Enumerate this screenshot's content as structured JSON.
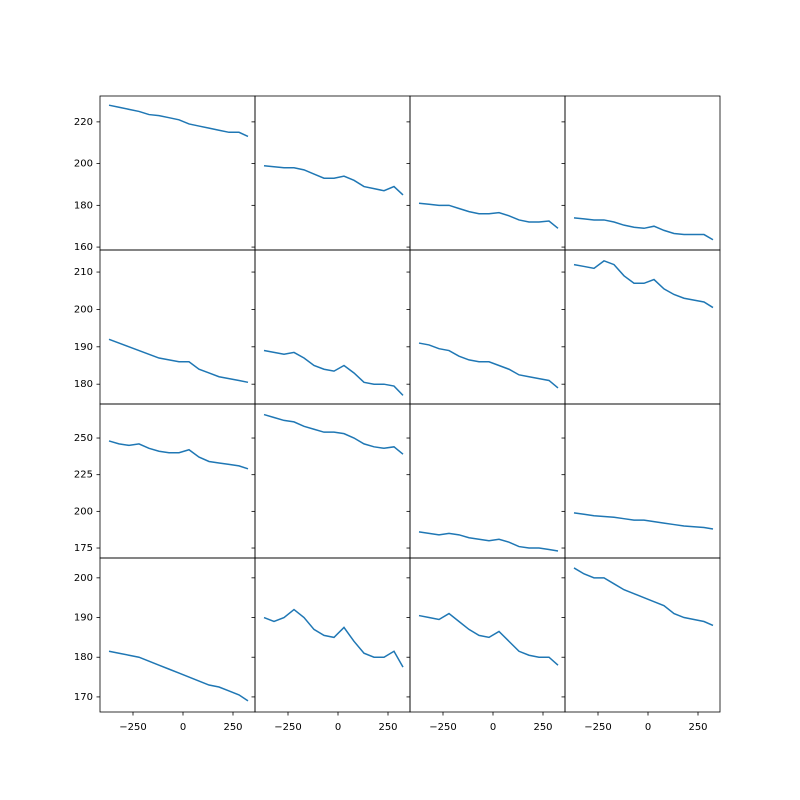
{
  "chart_data": [
    {
      "type": "line",
      "x": [
        -370,
        -320,
        -270,
        -220,
        -170,
        -120,
        -70,
        -20,
        30,
        80,
        130,
        180,
        230,
        280,
        325
      ],
      "xlim": [
        -415,
        360
      ],
      "ylim": [
        158.6,
        232.4
      ],
      "yticks": [
        160,
        180,
        200,
        220
      ],
      "color": "#1f77b4",
      "values": [
        228,
        227,
        226,
        225,
        223.5,
        223,
        222,
        221,
        219,
        218,
        217,
        216,
        215,
        215,
        213
      ]
    },
    {
      "type": "line",
      "x": [
        -370,
        -320,
        -270,
        -220,
        -170,
        -120,
        -70,
        -20,
        30,
        80,
        130,
        180,
        230,
        280,
        325
      ],
      "xlim": [
        -415,
        360
      ],
      "ylim": [
        158.6,
        232.4
      ],
      "yticks": [
        160,
        180,
        200,
        220
      ],
      "color": "#1f77b4",
      "values": [
        199,
        198.5,
        198,
        198,
        197,
        195,
        193,
        193,
        194,
        192,
        189,
        188,
        187,
        189,
        185
      ]
    },
    {
      "type": "line",
      "x": [
        -370,
        -320,
        -270,
        -220,
        -170,
        -120,
        -70,
        -20,
        30,
        80,
        130,
        180,
        230,
        280,
        325
      ],
      "xlim": [
        -415,
        360
      ],
      "ylim": [
        158.6,
        232.4
      ],
      "yticks": [
        160,
        180,
        200,
        220
      ],
      "color": "#1f77b4",
      "values": [
        181,
        180.5,
        180,
        180,
        178.5,
        177,
        176,
        176,
        176.5,
        175,
        173,
        172,
        172,
        172.5,
        169
      ]
    },
    {
      "type": "line",
      "x": [
        -370,
        -320,
        -270,
        -220,
        -170,
        -120,
        -70,
        -20,
        30,
        80,
        130,
        180,
        230,
        280,
        325
      ],
      "xlim": [
        -415,
        360
      ],
      "ylim": [
        158.6,
        232.4
      ],
      "yticks": [
        160,
        180,
        200,
        220
      ],
      "color": "#1f77b4",
      "values": [
        174,
        173.5,
        173,
        173,
        172,
        170.5,
        169.5,
        169,
        170,
        168,
        166.5,
        166,
        166,
        166,
        163.5
      ]
    },
    {
      "type": "line",
      "x": [
        -370,
        -320,
        -270,
        -220,
        -170,
        -120,
        -70,
        -20,
        30,
        80,
        130,
        180,
        230,
        280,
        325
      ],
      "xlim": [
        -415,
        360
      ],
      "ylim": [
        174.7,
        215.9
      ],
      "yticks": [
        180,
        190,
        200,
        210
      ],
      "color": "#1f77b4",
      "values": [
        192,
        191,
        190,
        189,
        188,
        187,
        186.5,
        186,
        186,
        184,
        183,
        182,
        181.5,
        181,
        180.5
      ]
    },
    {
      "type": "line",
      "x": [
        -370,
        -320,
        -270,
        -220,
        -170,
        -120,
        -70,
        -20,
        30,
        80,
        130,
        180,
        230,
        280,
        325
      ],
      "xlim": [
        -415,
        360
      ],
      "ylim": [
        174.7,
        215.9
      ],
      "yticks": [
        180,
        190,
        200,
        210
      ],
      "color": "#1f77b4",
      "values": [
        189,
        188.5,
        188,
        188.5,
        187,
        185,
        184,
        183.5,
        185,
        183,
        180.5,
        180,
        180,
        179.5,
        177
      ]
    },
    {
      "type": "line",
      "x": [
        -370,
        -320,
        -270,
        -220,
        -170,
        -120,
        -70,
        -20,
        30,
        80,
        130,
        180,
        230,
        280,
        325
      ],
      "xlim": [
        -415,
        360
      ],
      "ylim": [
        174.7,
        215.9
      ],
      "yticks": [
        180,
        190,
        200,
        210
      ],
      "color": "#1f77b4",
      "values": [
        191,
        190.5,
        189.5,
        189,
        187.5,
        186.5,
        186,
        186,
        185,
        184,
        182.5,
        182,
        181.5,
        181,
        179
      ]
    },
    {
      "type": "line",
      "x": [
        -370,
        -320,
        -270,
        -220,
        -170,
        -120,
        -70,
        -20,
        30,
        80,
        130,
        180,
        230,
        280,
        325
      ],
      "xlim": [
        -415,
        360
      ],
      "ylim": [
        174.7,
        215.9
      ],
      "yticks": [
        180,
        190,
        200,
        210
      ],
      "color": "#1f77b4",
      "values": [
        212,
        211.5,
        211,
        213,
        212,
        209,
        207,
        207,
        208,
        205.5,
        204,
        203,
        202.5,
        202,
        200.5
      ]
    },
    {
      "type": "line",
      "x": [
        -370,
        -320,
        -270,
        -220,
        -170,
        -120,
        -70,
        -20,
        30,
        80,
        130,
        180,
        230,
        280,
        325
      ],
      "xlim": [
        -415,
        360
      ],
      "ylim": [
        168.2,
        273.2
      ],
      "yticks": [
        175,
        200,
        225,
        250
      ],
      "color": "#1f77b4",
      "values": [
        248,
        246,
        245,
        246,
        243,
        241,
        240,
        240,
        242,
        237,
        234,
        233,
        232,
        231,
        229
      ]
    },
    {
      "type": "line",
      "x": [
        -370,
        -320,
        -270,
        -220,
        -170,
        -120,
        -70,
        -20,
        30,
        80,
        130,
        180,
        230,
        280,
        325
      ],
      "xlim": [
        -415,
        360
      ],
      "ylim": [
        168.2,
        273.2
      ],
      "yticks": [
        175,
        200,
        225,
        250
      ],
      "color": "#1f77b4",
      "values": [
        266,
        264,
        262,
        261,
        258,
        256,
        254,
        254,
        253,
        250,
        246,
        244,
        243,
        244,
        239
      ]
    },
    {
      "type": "line",
      "x": [
        -370,
        -320,
        -270,
        -220,
        -170,
        -120,
        -70,
        -20,
        30,
        80,
        130,
        180,
        230,
        280,
        325
      ],
      "xlim": [
        -415,
        360
      ],
      "ylim": [
        168.2,
        273.2
      ],
      "yticks": [
        175,
        200,
        225,
        250
      ],
      "color": "#1f77b4",
      "values": [
        186,
        185,
        184,
        185,
        184,
        182,
        181,
        180,
        181,
        179,
        176,
        175,
        175,
        174,
        173
      ]
    },
    {
      "type": "line",
      "x": [
        -370,
        -320,
        -270,
        -220,
        -170,
        -120,
        -70,
        -20,
        30,
        80,
        130,
        180,
        230,
        280,
        325
      ],
      "xlim": [
        -415,
        360
      ],
      "ylim": [
        168.2,
        273.2
      ],
      "yticks": [
        175,
        200,
        225,
        250
      ],
      "color": "#1f77b4",
      "values": [
        199,
        198,
        197,
        196.5,
        196,
        195,
        194,
        194,
        193,
        192,
        191,
        190,
        189.5,
        189,
        188
      ]
    },
    {
      "type": "line",
      "x": [
        -370,
        -320,
        -270,
        -220,
        -170,
        -120,
        -70,
        -20,
        30,
        80,
        130,
        180,
        230,
        280,
        325
      ],
      "xlim": [
        -415,
        360
      ],
      "ylim": [
        166.2,
        205
      ],
      "yticks": [
        170,
        180,
        190,
        200
      ],
      "xticks": [
        {
          "value": -250,
          "label": "−250"
        },
        0,
        250
      ],
      "color": "#1f77b4",
      "values": [
        181.5,
        181,
        180.5,
        180,
        179,
        178,
        177,
        176,
        175,
        174,
        173,
        172.5,
        171.5,
        170.5,
        169
      ]
    },
    {
      "type": "line",
      "x": [
        -370,
        -320,
        -270,
        -220,
        -170,
        -120,
        -70,
        -20,
        30,
        80,
        130,
        180,
        230,
        280,
        325
      ],
      "xlim": [
        -415,
        360
      ],
      "ylim": [
        166.2,
        205
      ],
      "yticks": [
        170,
        180,
        190,
        200
      ],
      "xticks": [
        {
          "value": -250,
          "label": "−250"
        },
        0,
        250
      ],
      "color": "#1f77b4",
      "values": [
        190,
        189,
        190,
        192,
        190,
        187,
        185.5,
        185,
        187.5,
        184,
        181,
        180,
        180,
        181.5,
        177.5
      ]
    },
    {
      "type": "line",
      "x": [
        -370,
        -320,
        -270,
        -220,
        -170,
        -120,
        -70,
        -20,
        30,
        80,
        130,
        180,
        230,
        280,
        325
      ],
      "xlim": [
        -415,
        360
      ],
      "ylim": [
        166.2,
        205
      ],
      "yticks": [
        170,
        180,
        190,
        200
      ],
      "xticks": [
        {
          "value": -250,
          "label": "−250"
        },
        0,
        250
      ],
      "color": "#1f77b4",
      "values": [
        190.5,
        190,
        189.5,
        191,
        189,
        187,
        185.5,
        185,
        186.5,
        184,
        181.5,
        180.5,
        180,
        180,
        178
      ]
    },
    {
      "type": "line",
      "x": [
        -370,
        -320,
        -270,
        -220,
        -170,
        -120,
        -70,
        -20,
        30,
        80,
        130,
        180,
        230,
        280,
        325
      ],
      "xlim": [
        -415,
        360
      ],
      "ylim": [
        166.2,
        205
      ],
      "yticks": [
        170,
        180,
        190,
        200
      ],
      "xticks": [
        {
          "value": -250,
          "label": "−250"
        },
        0,
        250
      ],
      "color": "#1f77b4",
      "values": [
        202.5,
        201,
        200,
        200,
        198.5,
        197,
        196,
        195,
        194,
        193,
        191,
        190,
        189.5,
        189,
        188
      ]
    }
  ]
}
